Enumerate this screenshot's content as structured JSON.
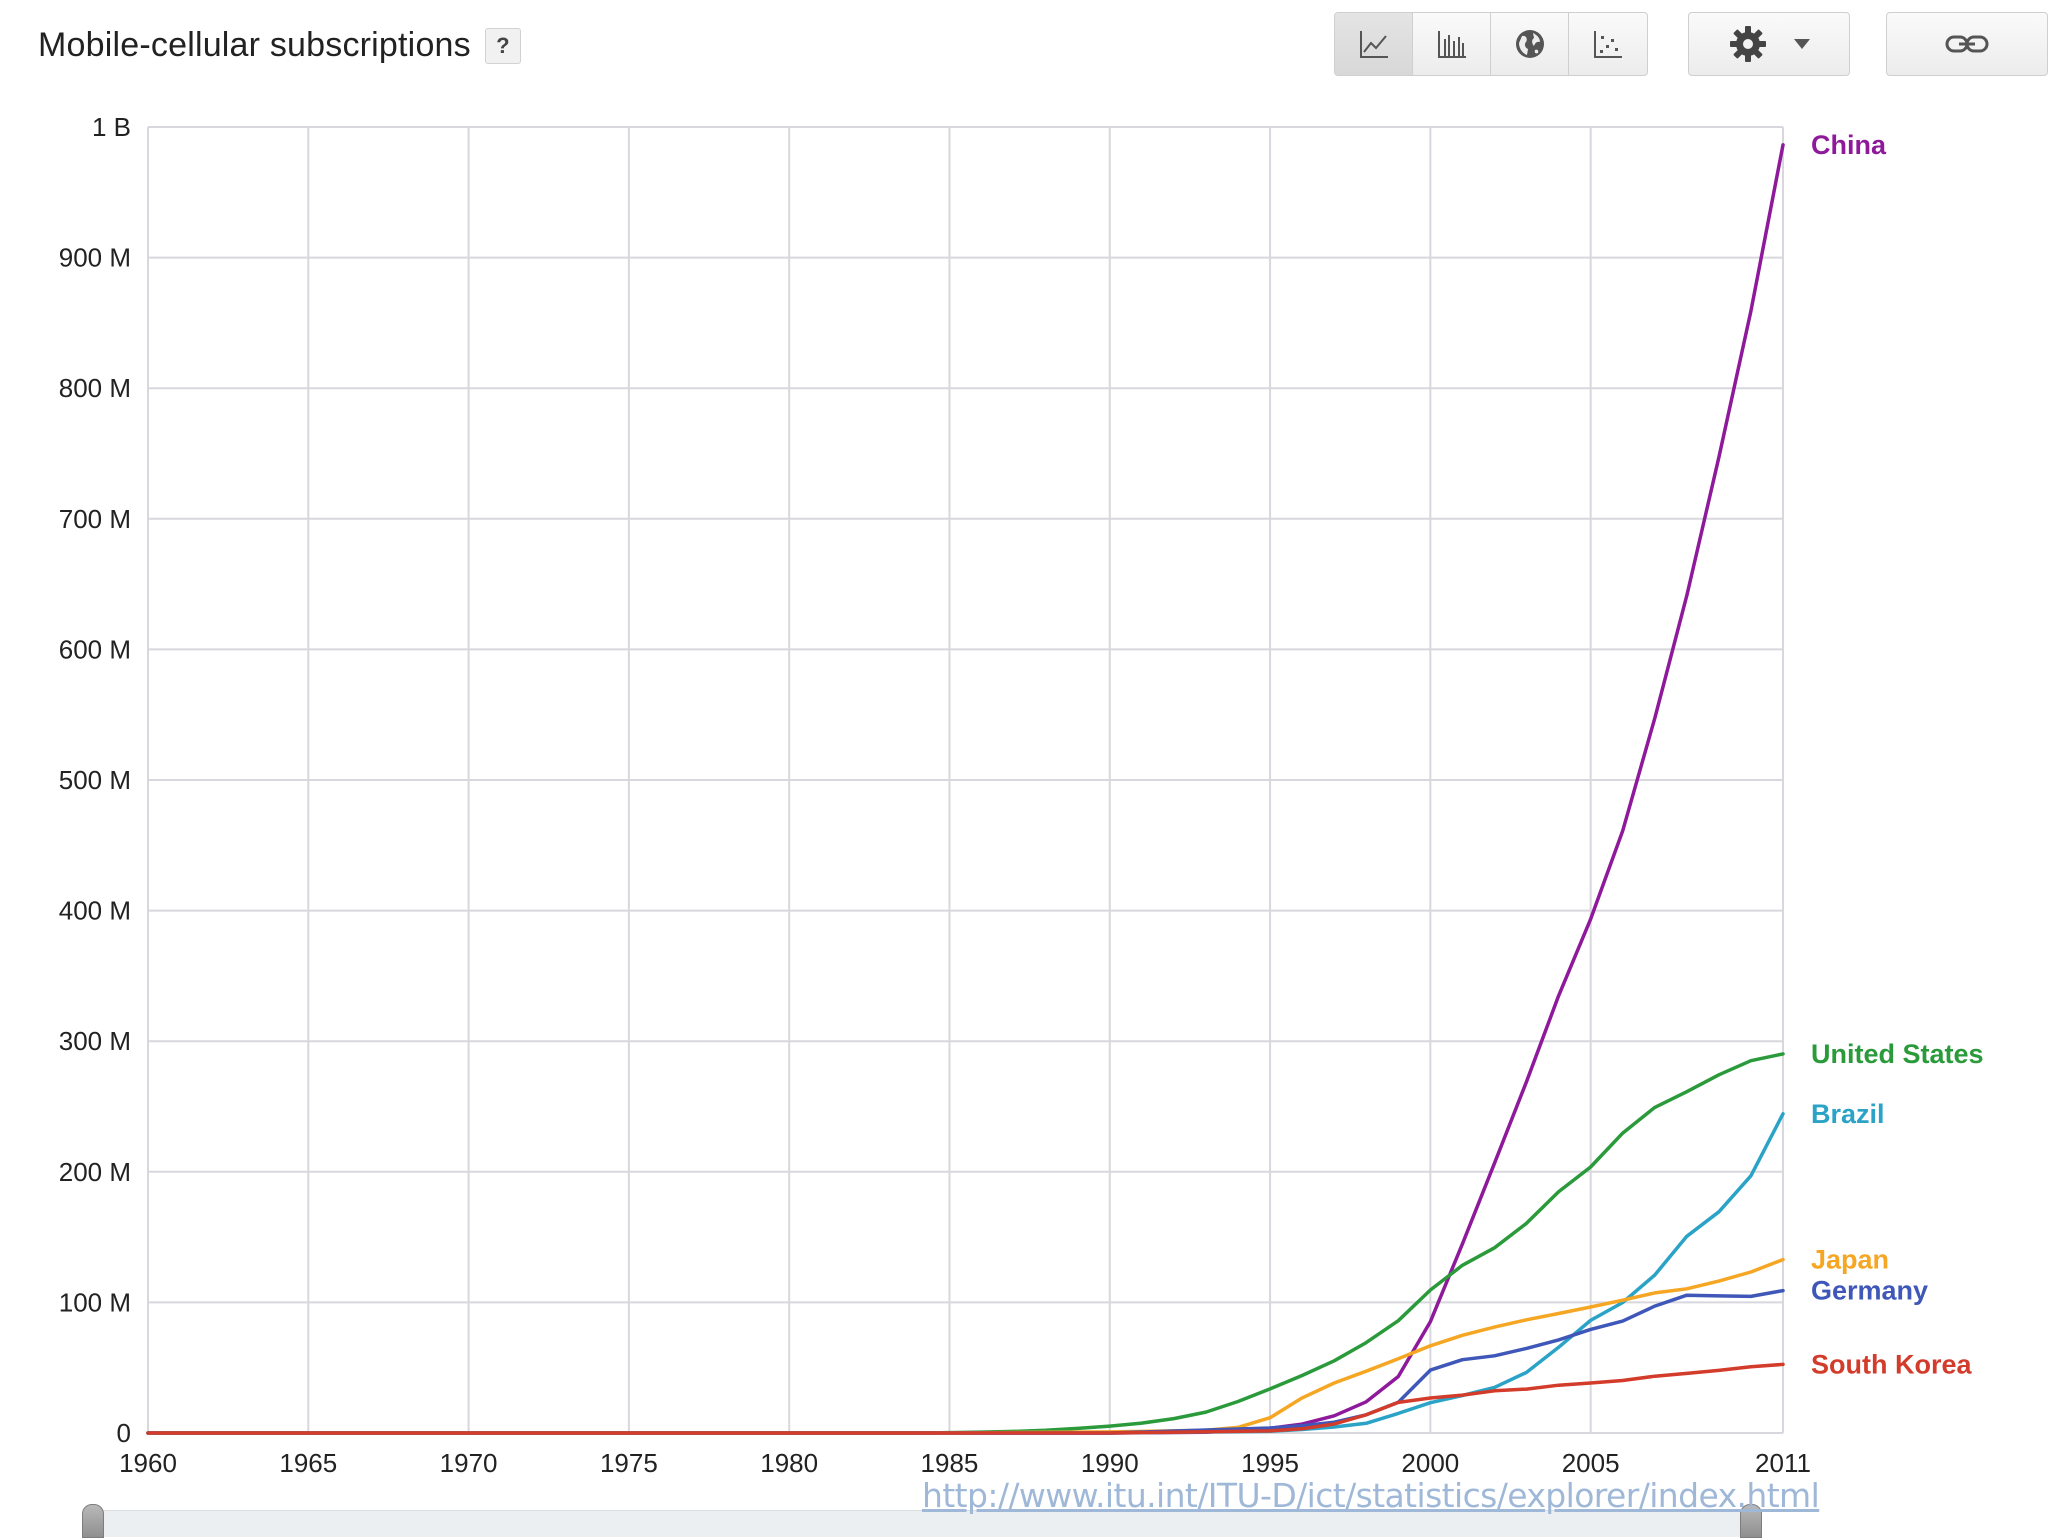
{
  "header": {
    "title": "Mobile-cellular subscriptions",
    "help_label": "?"
  },
  "toolbar": {
    "chart_types": [
      {
        "name": "line-chart-icon",
        "active": true
      },
      {
        "name": "bar-chart-icon",
        "active": false
      },
      {
        "name": "map-icon",
        "active": false
      },
      {
        "name": "scatter-chart-icon",
        "active": false
      }
    ],
    "settings_icon": "gear-icon",
    "dropdown_icon": "caret-down-icon",
    "link_icon": "link-icon"
  },
  "source": {
    "url": "http://www.itu.int/ITU-D/ict/statistics/explorer/index.html"
  },
  "chart_data": {
    "type": "line",
    "title": "Mobile-cellular subscriptions",
    "xlabel": "",
    "ylabel": "",
    "xlim": [
      1960,
      2011
    ],
    "ylim": [
      0,
      1000000000
    ],
    "x_ticks": [
      1960,
      1965,
      1970,
      1975,
      1980,
      1985,
      1990,
      1995,
      2000,
      2005,
      2011
    ],
    "x_tick_labels": [
      "1960",
      "1965",
      "1970",
      "1975",
      "1980",
      "1985",
      "1990",
      "1995",
      "2000",
      "2005",
      "2011"
    ],
    "y_ticks": [
      0,
      100000000,
      200000000,
      300000000,
      400000000,
      500000000,
      600000000,
      700000000,
      800000000,
      900000000,
      1000000000
    ],
    "y_tick_labels": [
      "0",
      "100 M",
      "200 M",
      "300 M",
      "400 M",
      "500 M",
      "600 M",
      "700 M",
      "800 M",
      "900 M",
      "1 B"
    ],
    "grid": true,
    "legend_placement": "end-of-line labels, right",
    "series": [
      {
        "name": "China",
        "color": "#8e1a9b",
        "x": [
          1960,
          1985,
          1987,
          1990,
          1993,
          1995,
          1996,
          1997,
          1998,
          1999,
          2000,
          2001,
          2002,
          2003,
          2004,
          2005,
          2006,
          2007,
          2008,
          2009,
          2010,
          2011
        ],
        "y": [
          0,
          0,
          10000,
          20000,
          640000,
          3600000,
          6850000,
          13200000,
          23900000,
          43300000,
          85300000,
          144800000,
          206600000,
          269000000,
          334800000,
          393400000,
          461100000,
          547300000,
          641200000,
          747200000,
          859000000,
          986300000
        ]
      },
      {
        "name": "United States",
        "color": "#2a9a3b",
        "x": [
          1960,
          1984,
          1985,
          1986,
          1987,
          1988,
          1989,
          1990,
          1991,
          1992,
          1993,
          1994,
          1995,
          1996,
          1997,
          1998,
          1999,
          2000,
          2001,
          2002,
          2003,
          2004,
          2005,
          2006,
          2007,
          2008,
          2009,
          2010,
          2011
        ],
        "y": [
          0,
          0,
          340000,
          680000,
          1200000,
          2100000,
          3500000,
          5300000,
          7600000,
          11000000,
          16000000,
          24100000,
          33800000,
          44000000,
          55300000,
          69200000,
          86000000,
          109500000,
          128400000,
          141800000,
          160600000,
          184800000,
          203700000,
          229600000,
          249300000,
          261300000,
          274300000,
          285100000,
          290300000
        ]
      },
      {
        "name": "Brazil",
        "color": "#2aa3c7",
        "x": [
          1960,
          1990,
          1995,
          1996,
          1997,
          1998,
          1999,
          2000,
          2001,
          2002,
          2003,
          2004,
          2005,
          2006,
          2007,
          2008,
          2009,
          2010,
          2011
        ],
        "y": [
          0,
          0,
          1300000,
          2700000,
          4600000,
          7400000,
          15000000,
          23200000,
          28700000,
          34900000,
          46400000,
          65600000,
          86200000,
          99900000,
          121000000,
          150600000,
          169400000,
          196900000,
          244400000
        ]
      },
      {
        "name": "Japan",
        "color": "#f5a623",
        "x": [
          1960,
          1985,
          1990,
          1993,
          1994,
          1995,
          1996,
          1997,
          1998,
          1999,
          2000,
          2001,
          2002,
          2003,
          2004,
          2005,
          2006,
          2007,
          2008,
          2009,
          2010,
          2011
        ],
        "y": [
          0,
          0,
          870000,
          2100000,
          4300000,
          11700000,
          26900000,
          38300000,
          47300000,
          56800000,
          66800000,
          74800000,
          81100000,
          86700000,
          91500000,
          96500000,
          101700000,
          107300000,
          110400000,
          116300000,
          123300000,
          132800000
        ]
      },
      {
        "name": "Germany",
        "color": "#3f57b8",
        "x": [
          1960,
          1990,
          1995,
          1996,
          1997,
          1998,
          1999,
          2000,
          2001,
          2002,
          2003,
          2004,
          2005,
          2006,
          2007,
          2008,
          2009,
          2010,
          2011
        ],
        "y": [
          0,
          0,
          3800000,
          5500000,
          8300000,
          13900000,
          23500000,
          48200000,
          56100000,
          59100000,
          64800000,
          71300000,
          79300000,
          85700000,
          97200000,
          105500000,
          105000000,
          104600000,
          109000000
        ]
      },
      {
        "name": "South Korea",
        "color": "#d33b2a",
        "x": [
          1960,
          1990,
          1995,
          1996,
          1997,
          1998,
          1999,
          2000,
          2001,
          2002,
          2003,
          2004,
          2005,
          2006,
          2007,
          2008,
          2009,
          2010,
          2011
        ],
        "y": [
          0,
          0,
          1600000,
          3200000,
          6900000,
          13900000,
          23400000,
          26800000,
          29000000,
          32300000,
          33600000,
          36600000,
          38300000,
          40200000,
          43500000,
          45600000,
          47900000,
          50800000,
          52500000
        ]
      }
    ]
  }
}
